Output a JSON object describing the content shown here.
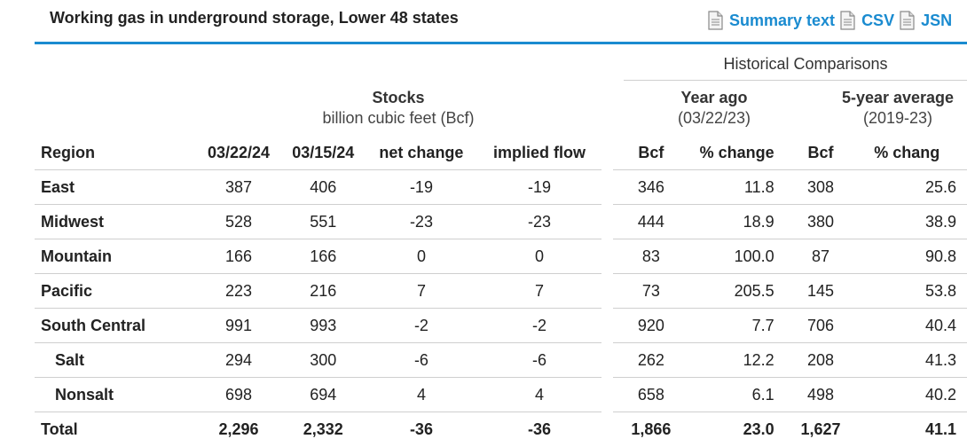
{
  "title": "Working gas in underground storage, Lower 48 states",
  "links": [
    {
      "label": "Summary text",
      "icon": "document-icon"
    },
    {
      "label": "CSV",
      "icon": "document-icon"
    },
    {
      "label": "JSN",
      "icon": "document-icon"
    }
  ],
  "accent_color": "#1a8bd0",
  "historical_header": "Historical Comparisons",
  "groups": {
    "stocks": {
      "title": "Stocks",
      "subtitle": "billion cubic feet (Bcf)"
    },
    "year_ago": {
      "title": "Year ago",
      "subtitle": "(03/22/23)"
    },
    "five_year": {
      "title": "5-year average",
      "subtitle": "(2019-23)"
    }
  },
  "columns": [
    "Region",
    "03/22/24",
    "03/15/24",
    "net change",
    "implied flow",
    "Bcf",
    "% change",
    "Bcf",
    "% chang"
  ],
  "rows": [
    {
      "region": "East",
      "indent": false,
      "cells": [
        "387",
        "406",
        "-19",
        "-19",
        "346",
        "11.8",
        "308",
        "25.6"
      ]
    },
    {
      "region": "Midwest",
      "indent": false,
      "cells": [
        "528",
        "551",
        "-23",
        "-23",
        "444",
        "18.9",
        "380",
        "38.9"
      ]
    },
    {
      "region": "Mountain",
      "indent": false,
      "cells": [
        "166",
        "166",
        "0",
        "0",
        "83",
        "100.0",
        "87",
        "90.8"
      ]
    },
    {
      "region": "Pacific",
      "indent": false,
      "cells": [
        "223",
        "216",
        "7",
        "7",
        "73",
        "205.5",
        "145",
        "53.8"
      ]
    },
    {
      "region": "South Central",
      "indent": false,
      "cells": [
        "991",
        "993",
        "-2",
        "-2",
        "920",
        "7.7",
        "706",
        "40.4"
      ]
    },
    {
      "region": "Salt",
      "indent": true,
      "cells": [
        "294",
        "300",
        "-6",
        "-6",
        "262",
        "12.2",
        "208",
        "41.3"
      ]
    },
    {
      "region": "Nonsalt",
      "indent": true,
      "cells": [
        "698",
        "694",
        "4",
        "4",
        "658",
        "6.1",
        "498",
        "40.2"
      ]
    }
  ],
  "total": {
    "region": "Total",
    "cells": [
      "2,296",
      "2,332",
      "-36",
      "-36",
      "1,866",
      "23.0",
      "1,627",
      "41.1"
    ]
  }
}
